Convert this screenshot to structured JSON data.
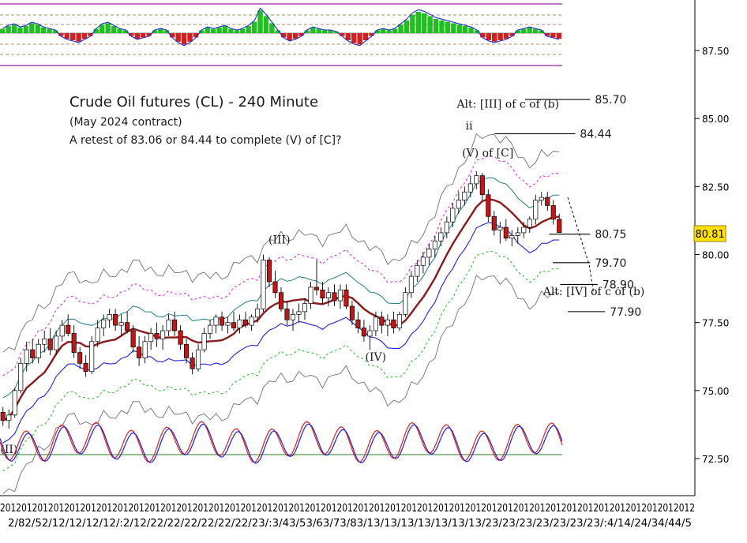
{
  "chart_data": {
    "type": "candlestick",
    "title": "Crude Oil futures (CL) - 240 Minute",
    "subtitle": "(May 2024 contract)",
    "note": "A retest of 83.06 or 84.44 to complete (V) of [C]?",
    "y_ticks": [
      "87.50",
      "85.00",
      "82.50",
      "80.00",
      "77.50",
      "75.00",
      "72.50"
    ],
    "y_tick_values": [
      87.5,
      85,
      82.5,
      80,
      77.5,
      75,
      72.5
    ],
    "ylim": [
      71.7,
      89.3
    ],
    "last_price": "80.81",
    "last_price_value": 80.81,
    "x_tick_top": "2012012012012012012012012012012012012012012012012012012012012012012012012012012012012012012012012012012012012012012012012012012012",
    "x_tick_bottom": "2/82/52/12/12/12/12/:2/12/22/22/22/22/22/22/23/:3/43/53/63/73/83/13/13/13/13/13/13/13/23/23/23/23/23/23/23/:4/14/24/34/44/5",
    "levels": [
      {
        "label": "85.70",
        "value": 85.7,
        "x0": 0.703,
        "x1": 0.79
      },
      {
        "label": "84.44",
        "value": 84.44,
        "x0": 0.662,
        "x1": 0.77
      },
      {
        "label": "80.75",
        "value": 80.75,
        "x0": 0.735,
        "x1": 0.79
      },
      {
        "label": "79.70",
        "value": 79.7,
        "x0": 0.74,
        "x1": 0.79
      },
      {
        "label": "78.90",
        "value": 78.9,
        "x0": 0.75,
        "x1": 0.8
      },
      {
        "label": "77.90",
        "value": 77.9,
        "x0": 0.76,
        "x1": 0.81
      }
    ],
    "wave_labels": [
      {
        "text": "Alt: [III] of c of (b)",
        "value": 85.4,
        "x": 0.68
      },
      {
        "text": "ii",
        "value": 84.6,
        "x": 0.628
      },
      {
        "text": "(V) of [C]",
        "value": 83.6,
        "x": 0.653
      },
      {
        "text": "(III)",
        "value": 80.4,
        "x": 0.374
      },
      {
        "text": "(IV)",
        "value": 76.1,
        "x": 0.503
      },
      {
        "text": "Alt: [IV] of c of (b)",
        "value": 78.5,
        "x": 0.795
      },
      {
        "text": "(II)",
        "value": 72.7,
        "x": 0.012
      }
    ],
    "candles": [
      {
        "o": 74.2,
        "h": 74.4,
        "l": 73.7,
        "c": 73.9
      },
      {
        "o": 73.9,
        "h": 74.3,
        "l": 73.6,
        "c": 74.1
      },
      {
        "o": 74.1,
        "h": 75.1,
        "l": 74.0,
        "c": 75.0
      },
      {
        "o": 75.0,
        "h": 76.2,
        "l": 74.9,
        "c": 76.0
      },
      {
        "o": 76.0,
        "h": 76.8,
        "l": 75.7,
        "c": 76.5
      },
      {
        "o": 76.5,
        "h": 76.9,
        "l": 76.0,
        "c": 76.2
      },
      {
        "o": 76.2,
        "h": 76.9,
        "l": 76.0,
        "c": 76.7
      },
      {
        "o": 76.7,
        "h": 77.2,
        "l": 76.4,
        "c": 76.9
      },
      {
        "o": 76.9,
        "h": 77.3,
        "l": 76.3,
        "c": 76.5
      },
      {
        "o": 76.5,
        "h": 77.2,
        "l": 76.3,
        "c": 77.0
      },
      {
        "o": 77.0,
        "h": 77.6,
        "l": 76.8,
        "c": 77.4
      },
      {
        "o": 77.4,
        "h": 77.8,
        "l": 77.0,
        "c": 77.1
      },
      {
        "o": 77.1,
        "h": 77.4,
        "l": 76.2,
        "c": 76.4
      },
      {
        "o": 76.4,
        "h": 76.6,
        "l": 75.8,
        "c": 76.0
      },
      {
        "o": 76.0,
        "h": 76.3,
        "l": 75.5,
        "c": 75.7
      },
      {
        "o": 75.7,
        "h": 77.0,
        "l": 75.6,
        "c": 76.8
      },
      {
        "o": 76.8,
        "h": 77.6,
        "l": 76.6,
        "c": 77.3
      },
      {
        "o": 77.3,
        "h": 77.8,
        "l": 77.0,
        "c": 77.6
      },
      {
        "o": 77.6,
        "h": 78.0,
        "l": 77.3,
        "c": 77.8
      },
      {
        "o": 77.8,
        "h": 78.0,
        "l": 77.2,
        "c": 77.4
      },
      {
        "o": 77.4,
        "h": 77.8,
        "l": 77.0,
        "c": 77.5
      },
      {
        "o": 77.5,
        "h": 77.9,
        "l": 77.1,
        "c": 77.2
      },
      {
        "o": 77.2,
        "h": 77.4,
        "l": 76.4,
        "c": 76.6
      },
      {
        "o": 76.6,
        "h": 77.0,
        "l": 75.9,
        "c": 76.2
      },
      {
        "o": 76.2,
        "h": 77.0,
        "l": 76.0,
        "c": 76.8
      },
      {
        "o": 76.8,
        "h": 77.3,
        "l": 76.5,
        "c": 77.1
      },
      {
        "o": 77.1,
        "h": 77.5,
        "l": 76.6,
        "c": 76.9
      },
      {
        "o": 76.9,
        "h": 77.4,
        "l": 76.5,
        "c": 77.2
      },
      {
        "o": 77.2,
        "h": 77.8,
        "l": 77.0,
        "c": 77.6
      },
      {
        "o": 77.6,
        "h": 77.9,
        "l": 77.0,
        "c": 77.2
      },
      {
        "o": 77.2,
        "h": 77.4,
        "l": 76.5,
        "c": 76.7
      },
      {
        "o": 76.7,
        "h": 76.9,
        "l": 76.0,
        "c": 76.2
      },
      {
        "o": 76.2,
        "h": 76.4,
        "l": 75.6,
        "c": 75.8
      },
      {
        "o": 75.8,
        "h": 76.7,
        "l": 75.7,
        "c": 76.5
      },
      {
        "o": 76.5,
        "h": 77.3,
        "l": 76.4,
        "c": 77.1
      },
      {
        "o": 77.1,
        "h": 77.6,
        "l": 76.9,
        "c": 77.4
      },
      {
        "o": 77.4,
        "h": 77.8,
        "l": 77.1,
        "c": 77.7
      },
      {
        "o": 77.7,
        "h": 77.9,
        "l": 77.2,
        "c": 77.4
      },
      {
        "o": 77.4,
        "h": 77.7,
        "l": 77.1,
        "c": 77.5
      },
      {
        "o": 77.5,
        "h": 77.9,
        "l": 77.2,
        "c": 77.3
      },
      {
        "o": 77.3,
        "h": 77.8,
        "l": 77.1,
        "c": 77.6
      },
      {
        "o": 77.6,
        "h": 77.9,
        "l": 77.3,
        "c": 77.4
      },
      {
        "o": 77.4,
        "h": 77.8,
        "l": 77.2,
        "c": 77.7
      },
      {
        "o": 77.7,
        "h": 78.2,
        "l": 77.5,
        "c": 78.0
      },
      {
        "o": 78.0,
        "h": 80.0,
        "l": 77.9,
        "c": 79.8
      },
      {
        "o": 79.8,
        "h": 79.9,
        "l": 78.8,
        "c": 79.0
      },
      {
        "o": 79.0,
        "h": 79.4,
        "l": 78.4,
        "c": 78.6
      },
      {
        "o": 78.6,
        "h": 78.8,
        "l": 77.9,
        "c": 78.0
      },
      {
        "o": 78.0,
        "h": 78.3,
        "l": 77.4,
        "c": 77.6
      },
      {
        "o": 77.6,
        "h": 78.0,
        "l": 77.2,
        "c": 77.8
      },
      {
        "o": 77.8,
        "h": 78.2,
        "l": 77.5,
        "c": 77.9
      },
      {
        "o": 77.9,
        "h": 78.4,
        "l": 77.6,
        "c": 78.2
      },
      {
        "o": 78.2,
        "h": 79.0,
        "l": 78.0,
        "c": 78.8
      },
      {
        "o": 78.8,
        "h": 79.8,
        "l": 78.5,
        "c": 78.7
      },
      {
        "o": 78.7,
        "h": 79.0,
        "l": 78.2,
        "c": 78.4
      },
      {
        "o": 78.4,
        "h": 78.8,
        "l": 78.1,
        "c": 78.6
      },
      {
        "o": 78.6,
        "h": 78.9,
        "l": 78.1,
        "c": 78.3
      },
      {
        "o": 78.3,
        "h": 78.9,
        "l": 78.0,
        "c": 78.7
      },
      {
        "o": 78.7,
        "h": 78.9,
        "l": 78.0,
        "c": 78.1
      },
      {
        "o": 78.1,
        "h": 78.3,
        "l": 77.4,
        "c": 77.6
      },
      {
        "o": 77.6,
        "h": 77.9,
        "l": 77.1,
        "c": 77.3
      },
      {
        "o": 77.3,
        "h": 77.6,
        "l": 76.8,
        "c": 77.0
      },
      {
        "o": 77.0,
        "h": 77.4,
        "l": 76.5,
        "c": 77.2
      },
      {
        "o": 77.2,
        "h": 77.9,
        "l": 77.0,
        "c": 77.7
      },
      {
        "o": 77.7,
        "h": 77.9,
        "l": 77.1,
        "c": 77.4
      },
      {
        "o": 77.4,
        "h": 77.8,
        "l": 77.0,
        "c": 77.6
      },
      {
        "o": 77.6,
        "h": 77.9,
        "l": 77.1,
        "c": 77.3
      },
      {
        "o": 77.3,
        "h": 77.9,
        "l": 77.2,
        "c": 77.8
      },
      {
        "o": 77.8,
        "h": 78.8,
        "l": 77.7,
        "c": 78.6
      },
      {
        "o": 78.6,
        "h": 79.4,
        "l": 78.4,
        "c": 79.2
      },
      {
        "o": 79.2,
        "h": 79.8,
        "l": 79.0,
        "c": 79.6
      },
      {
        "o": 79.6,
        "h": 80.1,
        "l": 79.3,
        "c": 79.9
      },
      {
        "o": 79.9,
        "h": 80.4,
        "l": 79.6,
        "c": 80.2
      },
      {
        "o": 80.2,
        "h": 80.7,
        "l": 79.9,
        "c": 80.5
      },
      {
        "o": 80.5,
        "h": 81.0,
        "l": 80.3,
        "c": 80.8
      },
      {
        "o": 80.8,
        "h": 81.4,
        "l": 80.6,
        "c": 81.2
      },
      {
        "o": 81.2,
        "h": 81.9,
        "l": 81.0,
        "c": 81.7
      },
      {
        "o": 81.7,
        "h": 82.3,
        "l": 81.5,
        "c": 82.0
      },
      {
        "o": 82.0,
        "h": 82.5,
        "l": 81.8,
        "c": 82.3
      },
      {
        "o": 82.3,
        "h": 82.9,
        "l": 82.1,
        "c": 82.6
      },
      {
        "o": 82.6,
        "h": 83.06,
        "l": 82.4,
        "c": 82.9
      },
      {
        "o": 82.9,
        "h": 83.0,
        "l": 82.0,
        "c": 82.2
      },
      {
        "o": 82.2,
        "h": 82.4,
        "l": 81.2,
        "c": 81.4
      },
      {
        "o": 81.4,
        "h": 81.6,
        "l": 80.7,
        "c": 80.9
      },
      {
        "o": 80.9,
        "h": 81.2,
        "l": 80.4,
        "c": 81.0
      },
      {
        "o": 81.0,
        "h": 81.3,
        "l": 80.5,
        "c": 80.6
      },
      {
        "o": 80.6,
        "h": 80.9,
        "l": 80.3,
        "c": 80.7
      },
      {
        "o": 80.7,
        "h": 81.0,
        "l": 80.4,
        "c": 80.8
      },
      {
        "o": 80.8,
        "h": 81.2,
        "l": 80.6,
        "c": 81.0
      },
      {
        "o": 81.0,
        "h": 81.4,
        "l": 80.8,
        "c": 81.3
      },
      {
        "o": 81.3,
        "h": 82.2,
        "l": 81.1,
        "c": 82.0
      },
      {
        "o": 82.0,
        "h": 82.3,
        "l": 81.8,
        "c": 82.1
      },
      {
        "o": 82.1,
        "h": 82.3,
        "l": 81.6,
        "c": 81.8
      },
      {
        "o": 81.8,
        "h": 82.0,
        "l": 81.1,
        "c": 81.3
      },
      {
        "o": 81.3,
        "h": 81.5,
        "l": 80.8,
        "c": 80.81
      }
    ],
    "macd_hist": [
      0.3,
      0.5,
      0.6,
      0.4,
      0.5,
      0.7,
      0.6,
      0.4,
      0.3,
      0.2,
      -0.2,
      -0.4,
      -0.5,
      -0.6,
      -0.4,
      -0.2,
      0.3,
      0.6,
      0.7,
      0.5,
      0.3,
      0.2,
      -0.2,
      -0.4,
      -0.3,
      -0.2,
      0.2,
      0.3,
      0.2,
      -0.3,
      -0.6,
      -0.8,
      -0.6,
      -0.3,
      0.2,
      0.4,
      0.3,
      0.4,
      0.5,
      0.3,
      0.2,
      0.3,
      0.5,
      0.8,
      1.6,
      1.2,
      0.7,
      0.2,
      -0.3,
      -0.5,
      -0.4,
      -0.2,
      0.2,
      0.4,
      0.3,
      0.2,
      0.2,
      0.1,
      -0.2,
      -0.5,
      -0.7,
      -0.8,
      -0.5,
      -0.2,
      0.2,
      0.3,
      0.2,
      0.3,
      0.6,
      0.9,
      1.3,
      1.5,
      1.4,
      1.2,
      1.0,
      0.9,
      0.8,
      0.7,
      0.6,
      0.5,
      0.4,
      0.2,
      -0.3,
      -0.5,
      -0.6,
      -0.5,
      -0.4,
      -0.2,
      0.2,
      0.3,
      0.4,
      0.3,
      0.2,
      -0.2,
      -0.3,
      -0.4
    ]
  }
}
